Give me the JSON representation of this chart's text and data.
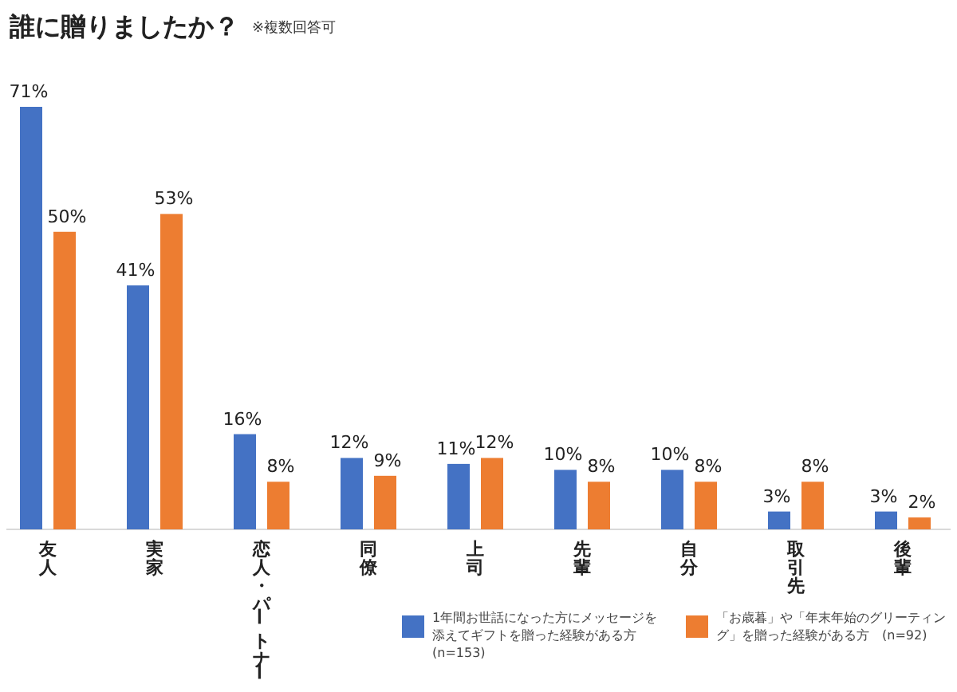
{
  "chart_data": {
    "type": "bar",
    "title": "誰に贈りましたか？",
    "subtitle": "※複数回答可",
    "categories": [
      "友人",
      "実家",
      "恋人・パートナー",
      "同僚",
      "上司",
      "先輩",
      "自分",
      "取引先",
      "後輩"
    ],
    "series": [
      {
        "name": "1年間お世話になった方にメッセージを添えてギフトを贈った経験がある方　(n=153)",
        "color": "#4472c4",
        "values": [
          71,
          41,
          16,
          12,
          11,
          10,
          10,
          3,
          3
        ],
        "value_labels": [
          "71%",
          "41%",
          "16%",
          "12%",
          "11%",
          "10%",
          "10%",
          "3%",
          "3%"
        ]
      },
      {
        "name": "「お歳暮」や「年末年始のグリーティング」を贈った経験がある方　(n=92)",
        "color": "#ed7d31",
        "values": [
          50,
          53,
          8,
          9,
          12,
          8,
          8,
          8,
          2
        ],
        "value_labels": [
          "50%",
          "53%",
          "8%",
          "9%",
          "12%",
          "8%",
          "8%",
          "8%",
          "2%"
        ]
      }
    ],
    "legend": "bottom right"
  }
}
